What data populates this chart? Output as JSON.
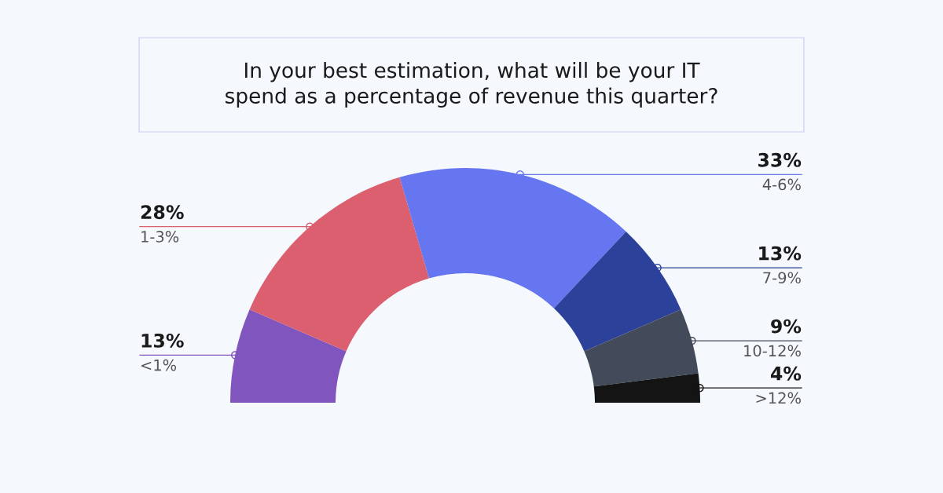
{
  "chart_data": {
    "type": "donut",
    "title": "In your best estimation, what will be your IT\nspend as a percentage of revenue this quarter?",
    "categories": [
      "<1%",
      "1-3%",
      "4-6%",
      "7-9%",
      "10-12%",
      ">12%"
    ],
    "values": [
      13,
      28,
      33,
      13,
      9,
      4
    ],
    "value_labels": [
      "13%",
      "28%",
      "33%",
      "13%",
      "9%",
      "4%"
    ],
    "colors": [
      "#8155be",
      "#dc5f70",
      "#6675f0",
      "#2b419a",
      "#434b5a",
      "#141414"
    ]
  }
}
